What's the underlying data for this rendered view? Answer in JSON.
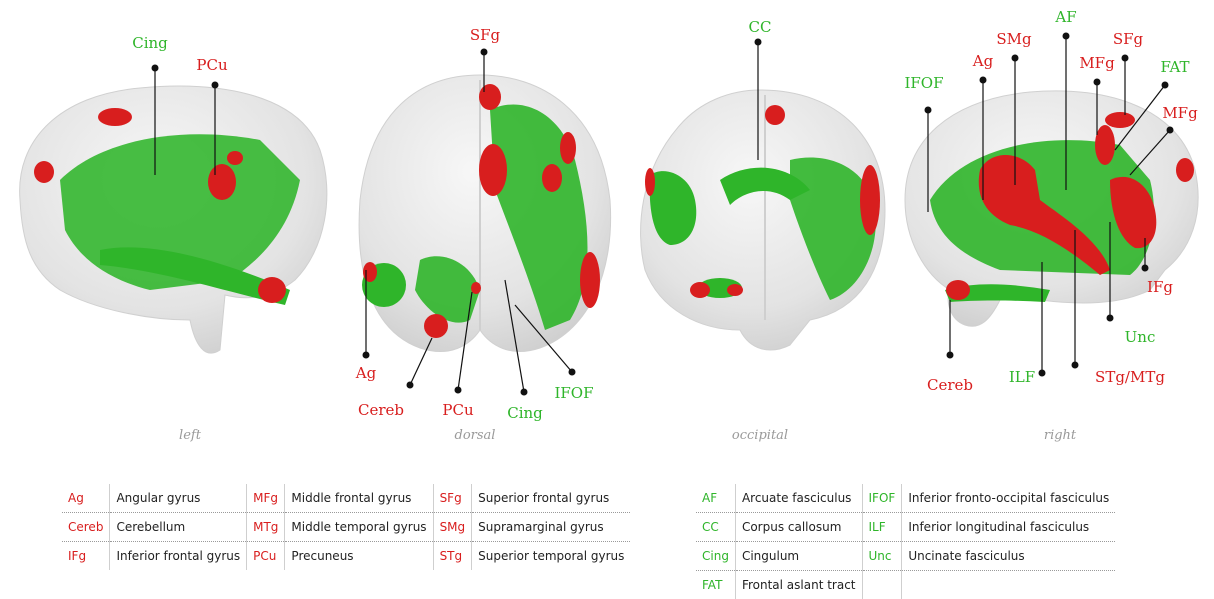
{
  "views": [
    "left",
    "dorsal",
    "occipital",
    "right"
  ],
  "labels": {
    "left": {
      "cing": "Cing",
      "pcu": "PCu"
    },
    "dorsal": {
      "sfg": "SFg",
      "ag": "Ag",
      "cereb": "Cereb",
      "pcu": "PCu",
      "cing": "Cing",
      "ifof": "IFOF"
    },
    "occipital": {
      "cc": "CC"
    },
    "right": {
      "ifof": "IFOF",
      "ag": "Ag",
      "smg": "SMg",
      "af": "AF",
      "mfg1": "MFg",
      "sfg": "SFg",
      "fat": "FAT",
      "mfg2": "MFg",
      "ifg": "IFg",
      "unc": "Unc",
      "ilf": "ILF",
      "stg_mtg": "STg/MTg",
      "cereb": "Cereb"
    }
  },
  "colors": {
    "gray_matter": "#d81e1e",
    "white_matter": "#2fb52a",
    "brain": "#e6e6e6"
  },
  "legend_gray": [
    [
      {
        "ab": "Ag",
        "nm": "Angular gyrus"
      },
      {
        "ab": "MFg",
        "nm": "Middle frontal gyrus"
      },
      {
        "ab": "SFg",
        "nm": "Superior frontal gyrus"
      }
    ],
    [
      {
        "ab": "Cereb",
        "nm": "Cerebellum"
      },
      {
        "ab": "MTg",
        "nm": "Middle temporal gyrus"
      },
      {
        "ab": "SMg",
        "nm": "Supramarginal gyrus"
      }
    ],
    [
      {
        "ab": "IFg",
        "nm": "Inferior frontal gyrus"
      },
      {
        "ab": "PCu",
        "nm": "Precuneus"
      },
      {
        "ab": "STg",
        "nm": "Superior temporal gyrus"
      }
    ]
  ],
  "legend_white": [
    [
      {
        "ab": "AF",
        "nm": "Arcuate fasciculus"
      },
      {
        "ab": "IFOF",
        "nm": "Inferior fronto-occipital fasciculus"
      }
    ],
    [
      {
        "ab": "CC",
        "nm": "Corpus callosum"
      },
      {
        "ab": "ILF",
        "nm": "Inferior longitudinal fasciculus"
      }
    ],
    [
      {
        "ab": "Cing",
        "nm": "Cingulum"
      },
      {
        "ab": "Unc",
        "nm": "Uncinate fasciculus"
      }
    ],
    [
      {
        "ab": "FAT",
        "nm": "Frontal aslant tract"
      },
      {
        "ab": "",
        "nm": ""
      }
    ]
  ]
}
